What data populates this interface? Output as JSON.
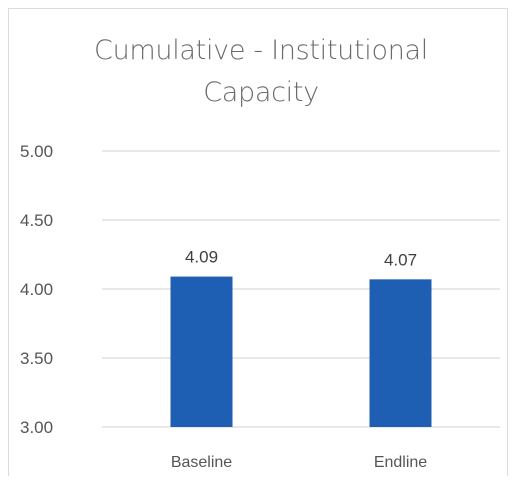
{
  "chart_data": {
    "type": "bar",
    "title_lines": [
      "Cumulative -  Institutional",
      "Capacity"
    ],
    "categories": [
      "Baseline",
      "Endline"
    ],
    "values": [
      4.09,
      4.07
    ],
    "data_labels": [
      "4.09",
      "4.07"
    ],
    "ylim": [
      3.0,
      5.0
    ],
    "yticks": [
      3.0,
      3.5,
      4.0,
      4.5,
      5.0
    ],
    "ytick_labels": [
      "3.00",
      "3.50",
      "4.00",
      "4.50",
      "5.00"
    ],
    "grid": true,
    "legend": "none",
    "bar_color": "#1f5fb3",
    "grid_color": "#d9d9d9"
  }
}
